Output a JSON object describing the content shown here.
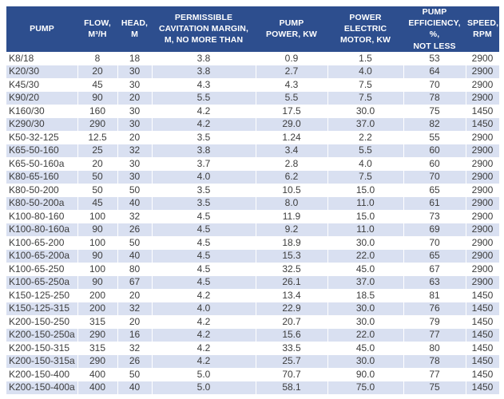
{
  "colors": {
    "header_bg": "#2D4E8E",
    "header_text": "#FFFFFF",
    "row_alt_bg": "#D9E0F1",
    "body_text": "#3D3D3D"
  },
  "table": {
    "columns": [
      "PUMP",
      "FLOW,\nM³/H",
      "HEAD,\nM",
      "PERMISSIBLE\nCAVITATION MARGIN,\nM, NO MORE THAN",
      "PUMP\nPOWER, KW",
      "POWER\nELECTRIC\nMOTOR, KW",
      "PUMP\nEFFICIENCY, %,\nNOT LESS",
      "SPEED,\nRPM"
    ],
    "rows": [
      [
        "K8/18",
        "8",
        "18",
        "3.8",
        "0.9",
        "1.5",
        "53",
        "2900"
      ],
      [
        "K20/30",
        "20",
        "30",
        "3.8",
        "2.7",
        "4.0",
        "64",
        "2900"
      ],
      [
        "K45/30",
        "45",
        "30",
        "4.3",
        "4.3",
        "7.5",
        "70",
        "2900"
      ],
      [
        "K90/20",
        "90",
        "20",
        "5.5",
        "5.5",
        "7.5",
        "78",
        "2900"
      ],
      [
        "K160/30",
        "160",
        "30",
        "4.2",
        "17.5",
        "30.0",
        "75",
        "1450"
      ],
      [
        "K290/30",
        "290",
        "30",
        "4.2",
        "29.0",
        "37.0",
        "82",
        "1450"
      ],
      [
        "K50-32-125",
        "12.5",
        "20",
        "3.5",
        "1.24",
        "2.2",
        "55",
        "2900"
      ],
      [
        "K65-50-160",
        "25",
        "32",
        "3.8",
        "3.4",
        "5.5",
        "60",
        "2900"
      ],
      [
        "K65-50-160a",
        "20",
        "30",
        "3.7",
        "2.8",
        "4.0",
        "60",
        "2900"
      ],
      [
        "K80-65-160",
        "50",
        "30",
        "4.0",
        "6.2",
        "7.5",
        "70",
        "2900"
      ],
      [
        "K80-50-200",
        "50",
        "50",
        "3.5",
        "10.5",
        "15.0",
        "65",
        "2900"
      ],
      [
        "K80-50-200a",
        "45",
        "40",
        "3.5",
        "8.0",
        "11.0",
        "61",
        "2900"
      ],
      [
        "K100-80-160",
        "100",
        "32",
        "4.5",
        "11.9",
        "15.0",
        "73",
        "2900"
      ],
      [
        "K100-80-160a",
        "90",
        "26",
        "4.5",
        "9.2",
        "11.0",
        "69",
        "2900"
      ],
      [
        "K100-65-200",
        "100",
        "50",
        "4.5",
        "18.9",
        "30.0",
        "70",
        "2900"
      ],
      [
        "K100-65-200a",
        "90",
        "40",
        "4.5",
        "15.3",
        "22.0",
        "65",
        "2900"
      ],
      [
        "K100-65-250",
        "100",
        "80",
        "4.5",
        "32.5",
        "45.0",
        "67",
        "2900"
      ],
      [
        "K100-65-250a",
        "90",
        "67",
        "4.5",
        "26.1",
        "37.0",
        "63",
        "2900"
      ],
      [
        "K150-125-250",
        "200",
        "20",
        "4.2",
        "13.4",
        "18.5",
        "81",
        "1450"
      ],
      [
        "K150-125-315",
        "200",
        "32",
        "4.0",
        "22.9",
        "30.0",
        "76",
        "1450"
      ],
      [
        "K200-150-250",
        "315",
        "20",
        "4.2",
        "20.7",
        "30.0",
        "79",
        "1450"
      ],
      [
        "K200-150-250a",
        "290",
        "16",
        "4.2",
        "15.6",
        "22.0",
        "77",
        "1450"
      ],
      [
        "K200-150-315",
        "315",
        "32",
        "4.2",
        "33.5",
        "45.0",
        "80",
        "1450"
      ],
      [
        "K200-150-315a",
        "290",
        "26",
        "4.2",
        "25.7",
        "30.0",
        "78",
        "1450"
      ],
      [
        "K200-150-400",
        "400",
        "50",
        "5.0",
        "70.7",
        "90.0",
        "77",
        "1450"
      ],
      [
        "K200-150-400a",
        "400",
        "40",
        "5.0",
        "58.1",
        "75.0",
        "75",
        "1450"
      ]
    ]
  }
}
